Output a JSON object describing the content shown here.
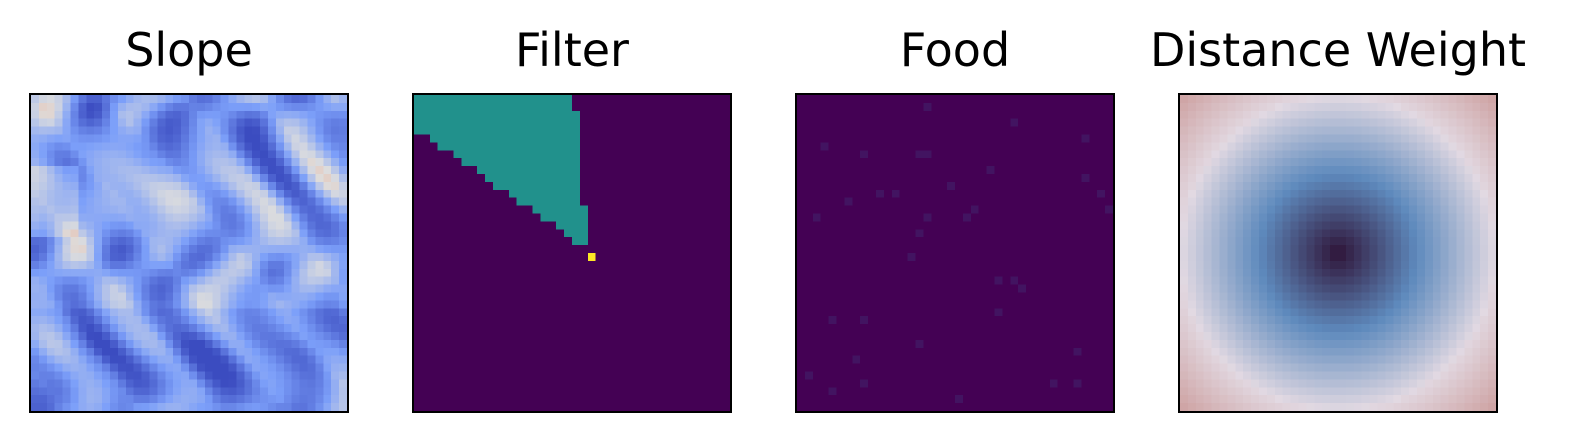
{
  "chart_data": [
    {
      "type": "heatmap",
      "title": "Slope",
      "colormap": "coolwarm",
      "description_pattern": "ridged-terrain"
    },
    {
      "type": "heatmap",
      "title": "Filter",
      "colormap": "viridis",
      "sector": {
        "apex": [
          0.55,
          0.49
        ],
        "bearing_deg_from_north": 330,
        "half_angle_deg": 25
      },
      "values_present": [
        0,
        0.5,
        1.0
      ]
    },
    {
      "type": "heatmap",
      "title": "Food",
      "colormap": "viridis",
      "background": 0,
      "sparse_points": 36
    },
    {
      "type": "heatmap",
      "title": "Distance Weight",
      "colormap": "twilight",
      "pattern": "radial",
      "center": [
        0.5,
        0.5
      ]
    }
  ],
  "colors": {
    "viridis_low": "#440154",
    "viridis_mid": "#21918c",
    "viridis_high": "#fde725"
  }
}
